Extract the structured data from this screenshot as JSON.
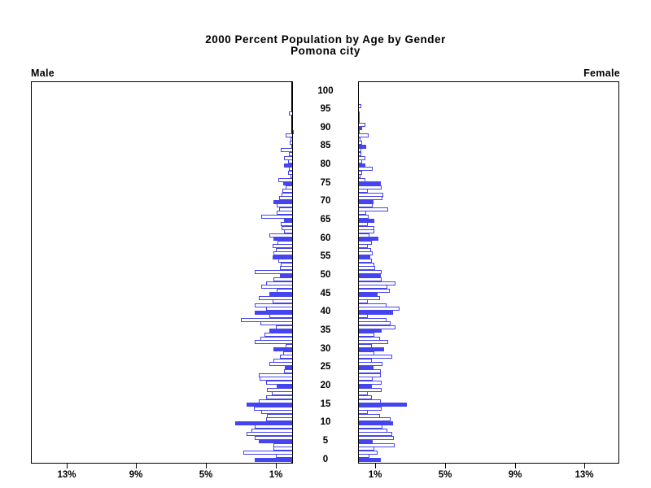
{
  "title": {
    "line1": "2000 Percent Population by Age by Gender",
    "line2": "Pomona city"
  },
  "panel_labels": {
    "male": "Male",
    "female": "Female"
  },
  "colors": {
    "bar_blue": "#4444f0",
    "bar_open_fill": "#ffffff",
    "axis_black": "#000000",
    "background": "#ffffff"
  },
  "axis": {
    "age_tick_labels": [
      "0",
      "5",
      "10",
      "15",
      "20",
      "25",
      "30",
      "35",
      "40",
      "45",
      "50",
      "55",
      "60",
      "65",
      "70",
      "75",
      "80",
      "85",
      "90",
      "95",
      "100"
    ],
    "pct_ticks": [
      {
        "value": 1,
        "label": "1%"
      },
      {
        "value": 5,
        "label": "5%"
      },
      {
        "value": 9,
        "label": "9%"
      },
      {
        "value": 13,
        "label": "13%"
      }
    ],
    "pct_range_each_side": [
      0,
      15
    ]
  },
  "chart_data": {
    "type": "bar",
    "subtype": "population-pyramid",
    "title": "2000 Percent Population by Age by Gender — Pomona city",
    "unit": "%",
    "age_min": 0,
    "age_max": 100,
    "filled_bar_every": 5,
    "xlim_each_side": [
      0,
      15
    ],
    "legend_position": "none",
    "grid": false,
    "series": [
      {
        "name": "Male",
        "direction": "left",
        "values": [
          2.2,
          1.0,
          2.85,
          1.1,
          1.1,
          1.95,
          2.2,
          2.65,
          2.4,
          2.2,
          3.3,
          1.55,
          1.5,
          1.8,
          2.25,
          2.65,
          1.95,
          1.55,
          1.2,
          1.5,
          0.95,
          1.55,
          1.9,
          1.95,
          0.5,
          0.45,
          1.35,
          1.1,
          0.75,
          0.55,
          1.1,
          0.4,
          2.2,
          1.85,
          1.65,
          1.35,
          1.0,
          1.85,
          3.0,
          1.35,
          2.2,
          1.55,
          2.2,
          1.15,
          1.95,
          1.35,
          0.95,
          1.8,
          1.55,
          1.1,
          0.75,
          2.2,
          0.75,
          0.7,
          0.85,
          1.15,
          1.1,
          1.0,
          1.15,
          0.9,
          1.1,
          1.35,
          0.5,
          0.65,
          0.7,
          0.5,
          1.8,
          0.95,
          0.8,
          0.95,
          1.1,
          0.8,
          0.65,
          0.6,
          0.4,
          0.55,
          0.85,
          0.15,
          0.3,
          0.25,
          0.5,
          0.3,
          0.5,
          0.25,
          0.7,
          0.1,
          0.2,
          0.15,
          0.4,
          0.05,
          0,
          0,
          0,
          0,
          0.25,
          0,
          0,
          0,
          0,
          0,
          0
        ]
      },
      {
        "name": "Female",
        "direction": "right",
        "values": [
          1.3,
          0.65,
          1.1,
          0.95,
          2.1,
          0.85,
          2.05,
          1.95,
          1.7,
          1.4,
          2.0,
          1.85,
          1.25,
          0.55,
          1.35,
          2.8,
          1.3,
          0.8,
          0.55,
          1.35,
          0.8,
          1.35,
          0.85,
          1.3,
          1.3,
          0.9,
          1.4,
          0.8,
          1.95,
          0.95,
          1.5,
          0.8,
          1.75,
          1.25,
          0.95,
          1.35,
          2.15,
          1.85,
          1.65,
          0.55,
          2.0,
          2.4,
          1.65,
          0.55,
          1.25,
          1.1,
          1.8,
          1.7,
          2.15,
          1.35,
          1.3,
          1.35,
          1.0,
          0.95,
          0.8,
          0.7,
          0.85,
          0.75,
          0.55,
          0.8,
          1.15,
          0.65,
          0.95,
          0.95,
          0.55,
          0.95,
          0.6,
          0.45,
          1.75,
          0.85,
          0.9,
          1.4,
          1.45,
          0.55,
          1.35,
          1.3,
          0.4,
          0.15,
          0.25,
          0.85,
          0.4,
          0.25,
          0.4,
          0.2,
          0.2,
          0.45,
          0.25,
          0.15,
          0.6,
          0.05,
          0.25,
          0.4,
          0.05,
          0.1,
          0.05,
          0,
          0.2,
          0,
          0,
          0,
          0
        ]
      }
    ]
  }
}
